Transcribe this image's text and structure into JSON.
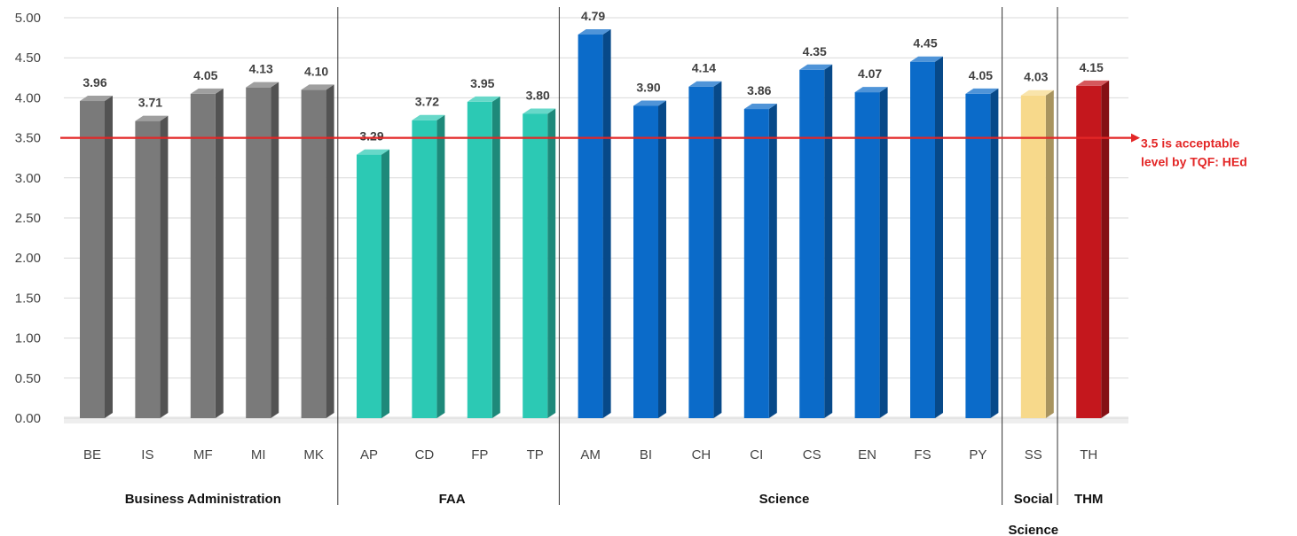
{
  "chart_data": {
    "type": "bar",
    "title": "",
    "xlabel": "",
    "ylabel": "",
    "ylim": [
      0,
      5
    ],
    "yticks": [
      "0.00",
      "0.50",
      "1.00",
      "1.50",
      "2.00",
      "2.50",
      "3.00",
      "3.50",
      "4.00",
      "4.50",
      "5.00"
    ],
    "grid": true,
    "legend": "none",
    "categories": [
      "BE",
      "IS",
      "MF",
      "MI",
      "MK",
      "AP",
      "CD",
      "FP",
      "TP",
      "AM",
      "BI",
      "CH",
      "CI",
      "CS",
      "EN",
      "FS",
      "PY",
      "SS",
      "TH"
    ],
    "values": [
      3.96,
      3.71,
      4.05,
      4.13,
      4.1,
      3.29,
      3.72,
      3.95,
      3.8,
      4.79,
      3.9,
      4.14,
      3.86,
      4.35,
      4.07,
      4.45,
      4.05,
      4.03,
      4.15
    ],
    "value_labels": [
      "3.96",
      "3.71",
      "4.05",
      "4.13",
      "4.10",
      "3.29",
      "3.72",
      "3.95",
      "3.80",
      "4.79",
      "3.90",
      "4.14",
      "3.86",
      "4.35",
      "4.07",
      "4.45",
      "4.05",
      "4.03",
      "4.15"
    ],
    "groups": [
      {
        "lines": [
          "Business Administration"
        ],
        "categories": [
          "BE",
          "IS",
          "MF",
          "MI",
          "MK"
        ],
        "color": "#7a7a7a"
      },
      {
        "lines": [
          "FAA"
        ],
        "categories": [
          "AP",
          "CD",
          "FP",
          "TP"
        ],
        "color": "#2cc9b4"
      },
      {
        "lines": [
          "Science"
        ],
        "categories": [
          "AM",
          "BI",
          "CH",
          "CI",
          "CS",
          "EN",
          "FS",
          "PY"
        ],
        "color": "#0b6bc9"
      },
      {
        "lines": [
          "Social",
          "Science"
        ],
        "categories": [
          "SS"
        ],
        "color": "#f7d98b"
      },
      {
        "lines": [
          "THM"
        ],
        "categories": [
          "TH"
        ],
        "color": "#c4171d"
      }
    ],
    "reference_line": {
      "value": 3.5,
      "color": "#e32626",
      "label_lines": [
        "3.5 is acceptable",
        "level by TQF: HEd"
      ]
    }
  }
}
